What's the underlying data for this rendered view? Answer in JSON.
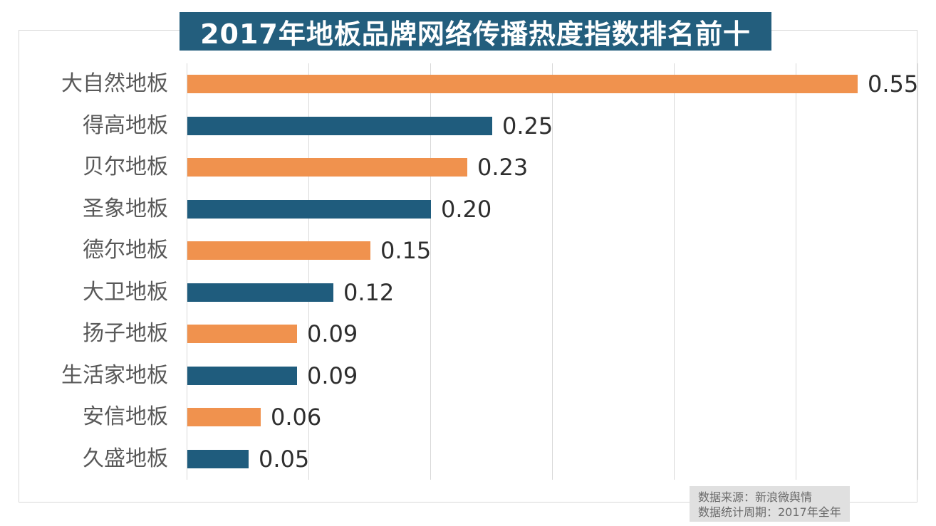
{
  "chart_data": {
    "type": "bar",
    "orientation": "horizontal",
    "title": "2017年地板品牌网络传播热度指数排名前十",
    "categories": [
      "大自然地板",
      "得高地板",
      "贝尔地板",
      "圣象地板",
      "德尔地板",
      "大卫地板",
      "扬子地板",
      "生活家地板",
      "安信地板",
      "久盛地板"
    ],
    "values": [
      0.55,
      0.25,
      0.23,
      0.2,
      0.15,
      0.12,
      0.09,
      0.09,
      0.06,
      0.05
    ],
    "value_labels": [
      "0.55",
      "0.25",
      "0.23",
      "0.20",
      "0.15",
      "0.12",
      "0.09",
      "0.09",
      "0.06",
      "0.05"
    ],
    "xlim": [
      0,
      0.6
    ],
    "grid_interval": 0.1,
    "grid": true,
    "legend_position": "none",
    "bar_colors_alternating": [
      "#F0924E",
      "#1F5C7D"
    ],
    "colors": {
      "title_bg": "#235E7D",
      "title_text": "#FFFFFF",
      "gridline": "#D9D9D9",
      "frame_border": "#D9D9D9",
      "category_label": "#595959",
      "value_label": "#2E2E2E",
      "footer_bg": "#E0E0E0",
      "footer_text": "#696969"
    }
  },
  "footer": {
    "source_line": "数据来源：新浪微舆情",
    "period_line": "数据统计周期：2017年全年"
  }
}
